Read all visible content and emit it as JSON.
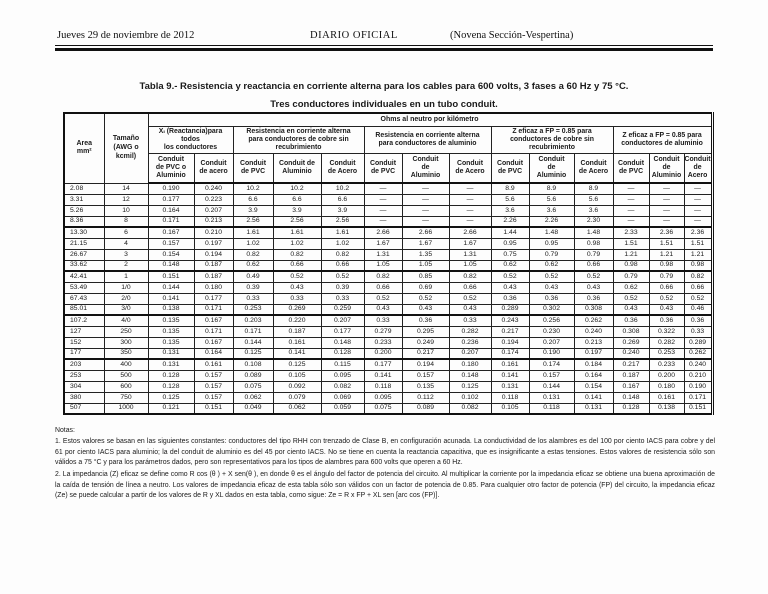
{
  "page": {
    "header": {
      "date": "Jueves 29 de noviembre de 2012",
      "center": "DIARIO OFICIAL",
      "section": "(Novena Sección-Vespertina)"
    },
    "title_line1": "Tabla 9.- Resistencia y reactancia en corriente alterna para los cables para 600 volts, 3 fases a 60 Hz y 75 °C.",
    "title_line2": "Tres conductores individuales en un tubo conduit."
  },
  "table": {
    "banner": "Ohms al neutro por kilómetro",
    "col_area": "Area\nmm²",
    "col_size": "Tamaño\n(AWG o\nkcmil)",
    "groups": [
      {
        "label": "Xₗ (Reactancia)para\ntodos\nlos conductores",
        "cols": [
          "Conduit\nde PVC o\nAluminio",
          "Conduit\nde acero"
        ]
      },
      {
        "label": "Resistencia en corriente alterna\npara conductores de cobre sin\nrecubrimiento",
        "cols": [
          "Conduit\nde PVC",
          "Conduit de\nAluminio",
          "Conduit\nde Acero"
        ]
      },
      {
        "label": "Resistencia en corriente alterna\npara conductores de aluminio",
        "cols": [
          "Conduit\nde PVC",
          "Conduit\nde\nAluminio",
          "Conduit\nde Acero"
        ]
      },
      {
        "label": "Z eficaz a FP = 0.85 para\nconductores de cobre sin\nrecubrimiento",
        "cols": [
          "Conduit\nde PVC",
          "Conduit\nde\nAluminio",
          "Conduit\nde Acero"
        ]
      },
      {
        "label": "Z eficaz a FP = 0.85 para\nconductores de aluminio",
        "cols": [
          "Conduit\nde PVC",
          "Conduit\nde\nAluminio",
          "Conduit\nde\nAcero"
        ]
      }
    ],
    "rows": [
      [
        "2.08",
        "14",
        "0.190",
        "0.240",
        "10.2",
        "10.2",
        "10.2",
        "—",
        "—",
        "—",
        "8.9",
        "8.9",
        "8.9",
        "—",
        "—",
        "—"
      ],
      [
        "3.31",
        "12",
        "0.177",
        "0.223",
        "6.6",
        "6.6",
        "6.6",
        "—",
        "—",
        "—",
        "5.6",
        "5.6",
        "5.6",
        "—",
        "—",
        "—"
      ],
      [
        "5.26",
        "10",
        "0.164",
        "0.207",
        "3.9",
        "3.9",
        "3.9",
        "—",
        "—",
        "—",
        "3.6",
        "3.6",
        "3.6",
        "—",
        "—",
        "—"
      ],
      [
        "8.36",
        "8",
        "0.171",
        "0.213",
        "2.56",
        "2.56",
        "2.56",
        "—",
        "—",
        "—",
        "2.26",
        "2.26",
        "2.30",
        "—",
        "—",
        "—"
      ],
      [
        "13.30",
        "6",
        "0.167",
        "0.210",
        "1.61",
        "1.61",
        "1.61",
        "2.66",
        "2.66",
        "2.66",
        "1.44",
        "1.48",
        "1.48",
        "2.33",
        "2.36",
        "2.36"
      ],
      [
        "21.15",
        "4",
        "0.157",
        "0.197",
        "1.02",
        "1.02",
        "1.02",
        "1.67",
        "1.67",
        "1.67",
        "0.95",
        "0.95",
        "0.98",
        "1.51",
        "1.51",
        "1.51"
      ],
      [
        "26.67",
        "3",
        "0.154",
        "0.194",
        "0.82",
        "0.82",
        "0.82",
        "1.31",
        "1.35",
        "1.31",
        "0.75",
        "0.79",
        "0.79",
        "1.21",
        "1.21",
        "1.21"
      ],
      [
        "33.62",
        "2",
        "0.148",
        "0.187",
        "0.62",
        "0.66",
        "0.66",
        "1.05",
        "1.05",
        "1.05",
        "0.62",
        "0.62",
        "0.66",
        "0.98",
        "0.98",
        "0.98"
      ],
      [
        "42.41",
        "1",
        "0.151",
        "0.187",
        "0.49",
        "0.52",
        "0.52",
        "0.82",
        "0.85",
        "0.82",
        "0.52",
        "0.52",
        "0.52",
        "0.79",
        "0.79",
        "0.82"
      ],
      [
        "53.49",
        "1/0",
        "0.144",
        "0.180",
        "0.39",
        "0.43",
        "0.39",
        "0.66",
        "0.69",
        "0.66",
        "0.43",
        "0.43",
        "0.43",
        "0.62",
        "0.66",
        "0.66"
      ],
      [
        "67.43",
        "2/0",
        "0.141",
        "0.177",
        "0.33",
        "0.33",
        "0.33",
        "0.52",
        "0.52",
        "0.52",
        "0.36",
        "0.36",
        "0.36",
        "0.52",
        "0.52",
        "0.52"
      ],
      [
        "85.01",
        "3/0",
        "0.138",
        "0.171",
        "0.253",
        "0.269",
        "0.259",
        "0.43",
        "0.43",
        "0.43",
        "0.289",
        "0.302",
        "0.308",
        "0.43",
        "0.43",
        "0.46"
      ],
      [
        "107.2",
        "4/0",
        "0.135",
        "0.167",
        "0.203",
        "0.220",
        "0.207",
        "0.33",
        "0.36",
        "0.33",
        "0.243",
        "0.256",
        "0.262",
        "0.36",
        "0.36",
        "0.36"
      ],
      [
        "127",
        "250",
        "0.135",
        "0.171",
        "0.171",
        "0.187",
        "0.177",
        "0.279",
        "0.295",
        "0.282",
        "0.217",
        "0.230",
        "0.240",
        "0.308",
        "0.322",
        "0.33"
      ],
      [
        "152",
        "300",
        "0.135",
        "0.167",
        "0.144",
        "0.161",
        "0.148",
        "0.233",
        "0.249",
        "0.236",
        "0.194",
        "0.207",
        "0.213",
        "0.269",
        "0.282",
        "0.289"
      ],
      [
        "177",
        "350",
        "0.131",
        "0.164",
        "0.125",
        "0.141",
        "0.128",
        "0.200",
        "0.217",
        "0.207",
        "0.174",
        "0.190",
        "0.197",
        "0.240",
        "0.253",
        "0.262"
      ],
      [
        "203",
        "400",
        "0.131",
        "0.161",
        "0.108",
        "0.125",
        "0.115",
        "0.177",
        "0.194",
        "0.180",
        "0.161",
        "0.174",
        "0.184",
        "0.217",
        "0.233",
        "0.240"
      ],
      [
        "253",
        "500",
        "0.128",
        "0.157",
        "0.089",
        "0.105",
        "0.095",
        "0.141",
        "0.157",
        "0.148",
        "0.141",
        "0.157",
        "0.164",
        "0.187",
        "0.200",
        "0.210"
      ],
      [
        "304",
        "600",
        "0.128",
        "0.157",
        "0.075",
        "0.092",
        "0.082",
        "0.118",
        "0.135",
        "0.125",
        "0.131",
        "0.144",
        "0.154",
        "0.167",
        "0.180",
        "0.190"
      ],
      [
        "380",
        "750",
        "0.125",
        "0.157",
        "0.062",
        "0.079",
        "0.069",
        "0.095",
        "0.112",
        "0.102",
        "0.118",
        "0.131",
        "0.141",
        "0.148",
        "0.161",
        "0.171"
      ],
      [
        "507",
        "1000",
        "0.121",
        "0.151",
        "0.049",
        "0.062",
        "0.059",
        "0.075",
        "0.089",
        "0.082",
        "0.105",
        "0.118",
        "0.131",
        "0.128",
        "0.138",
        "0.151"
      ]
    ]
  },
  "notes": {
    "label": "Notas:",
    "items": [
      "1. Estos valores se basan en las siguientes constantes: conductores del tipo RHH con trenzado de Clase B, en configuración acunada. La conductividad de los alambres es del 100 por ciento IACS para cobre y del 61 por ciento IACS para aluminio; la del conduit de aluminio es del 45 por ciento IACS. No se tiene en cuenta la reactancia capacitiva, que es insignificante a estas tensiones. Estos valores de resistencia sólo son válidos a 75 °C y para los parámetros dados, pero son representativos para los tipos de alambres para 600 volts que operen a 60 Hz.",
      "2. La impedancia (Z) eficaz se define como R cos (θ ) + X sen(θ ), en donde θ es el ángulo del factor de potencia del circuito. Al multiplicar la corriente por la impedancia eficaz se obtiene una buena aproximación de la caída de tensión de línea a neutro. Los valores de impedancia eficaz de esta tabla sólo son válidos con un factor de potencia de 0.85. Para cualquier otro factor de potencia (FP) del circuito, la impedancia eficaz (Ze) se puede calcular a partir de los valores de R y XL dados en esta tabla, como sigue: Ze = R x FP + XL sen [arc cos (FP)]."
    ]
  }
}
